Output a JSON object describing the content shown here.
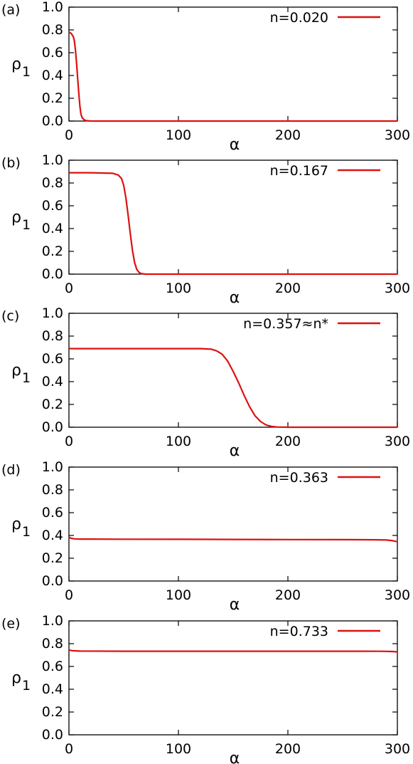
{
  "chart_data": [
    {
      "type": "line",
      "panel_label": "(a)",
      "xlabel": "α",
      "ylabel": "ρ",
      "ylabel_sub": "1",
      "xlim": [
        0,
        300
      ],
      "ylim": [
        0.0,
        1.0
      ],
      "x_ticks": [
        "0",
        "100",
        "200",
        "300"
      ],
      "y_ticks": [
        "0.0",
        "0.2",
        "0.4",
        "0.6",
        "0.8",
        "1.0"
      ],
      "legend_position": "top-right",
      "series": [
        {
          "name": "n=0.020",
          "color": "#dd1111",
          "x": [
            0,
            2,
            4,
            5,
            6,
            7,
            8,
            9,
            10,
            11,
            12,
            14,
            16,
            20,
            40,
            100,
            200,
            300
          ],
          "y": [
            0.78,
            0.77,
            0.74,
            0.7,
            0.62,
            0.5,
            0.37,
            0.24,
            0.13,
            0.06,
            0.03,
            0.01,
            0.003,
            0.0,
            0.0,
            0.0,
            0.0,
            0.0
          ]
        }
      ]
    },
    {
      "type": "line",
      "panel_label": "(b)",
      "xlabel": "α",
      "ylabel": "ρ",
      "ylabel_sub": "1",
      "xlim": [
        0,
        300
      ],
      "ylim": [
        0.0,
        1.0
      ],
      "x_ticks": [
        "0",
        "100",
        "200",
        "300"
      ],
      "y_ticks": [
        "0.0",
        "0.2",
        "0.4",
        "0.6",
        "0.8",
        "1.0"
      ],
      "legend_position": "top-right",
      "series": [
        {
          "name": "n=0.167",
          "color": "#dd1111",
          "x": [
            0,
            20,
            40,
            45,
            48,
            50,
            52,
            54,
            56,
            58,
            60,
            62,
            64,
            66,
            70,
            80,
            100,
            200,
            300
          ],
          "y": [
            0.89,
            0.89,
            0.885,
            0.87,
            0.84,
            0.78,
            0.67,
            0.52,
            0.36,
            0.21,
            0.1,
            0.04,
            0.015,
            0.005,
            0.0,
            0.0,
            0.0,
            0.0,
            0.0
          ]
        }
      ]
    },
    {
      "type": "line",
      "panel_label": "(c)",
      "xlabel": "α",
      "ylabel": "ρ",
      "ylabel_sub": "1",
      "xlim": [
        0,
        300
      ],
      "ylim": [
        0.0,
        1.0
      ],
      "x_ticks": [
        "0",
        "100",
        "200",
        "300"
      ],
      "y_ticks": [
        "0.0",
        "0.2",
        "0.4",
        "0.6",
        "0.8",
        "1.0"
      ],
      "legend_position": "top-right",
      "series": [
        {
          "name": "n=0.357≈n*",
          "color": "#dd1111",
          "x": [
            0,
            50,
            100,
            120,
            130,
            135,
            140,
            145,
            150,
            155,
            160,
            165,
            170,
            175,
            180,
            185,
            190,
            200,
            250,
            300
          ],
          "y": [
            0.69,
            0.69,
            0.69,
            0.69,
            0.685,
            0.67,
            0.64,
            0.58,
            0.49,
            0.39,
            0.28,
            0.18,
            0.1,
            0.05,
            0.02,
            0.007,
            0.002,
            0.0,
            0.0,
            0.0
          ]
        }
      ]
    },
    {
      "type": "line",
      "panel_label": "(d)",
      "xlabel": "α",
      "ylabel": "ρ",
      "ylabel_sub": "1",
      "xlim": [
        0,
        300
      ],
      "ylim": [
        0.0,
        1.0
      ],
      "x_ticks": [
        "0",
        "100",
        "200",
        "300"
      ],
      "y_ticks": [
        "0.0",
        "0.2",
        "0.4",
        "0.6",
        "0.8",
        "1.0"
      ],
      "legend_position": "top-right",
      "series": [
        {
          "name": "n=0.363",
          "color": "#dd1111",
          "x": [
            0,
            2,
            5,
            10,
            50,
            100,
            150,
            200,
            250,
            280,
            290,
            295,
            300
          ],
          "y": [
            0.385,
            0.375,
            0.37,
            0.368,
            0.367,
            0.366,
            0.365,
            0.364,
            0.363,
            0.362,
            0.36,
            0.355,
            0.345
          ]
        }
      ]
    },
    {
      "type": "line",
      "panel_label": "(e)",
      "xlabel": "α",
      "ylabel": "ρ",
      "ylabel_sub": "1",
      "xlim": [
        0,
        300
      ],
      "ylim": [
        0.0,
        1.0
      ],
      "x_ticks": [
        "0",
        "100",
        "200",
        "300"
      ],
      "y_ticks": [
        "0.0",
        "0.2",
        "0.4",
        "0.6",
        "0.8",
        "1.0"
      ],
      "legend_position": "top-right",
      "series": [
        {
          "name": "n=0.733",
          "color": "#dd1111",
          "x": [
            0,
            3,
            10,
            50,
            100,
            150,
            200,
            250,
            285,
            295,
            300
          ],
          "y": [
            0.745,
            0.738,
            0.735,
            0.734,
            0.734,
            0.734,
            0.734,
            0.734,
            0.733,
            0.731,
            0.728
          ]
        }
      ]
    }
  ]
}
